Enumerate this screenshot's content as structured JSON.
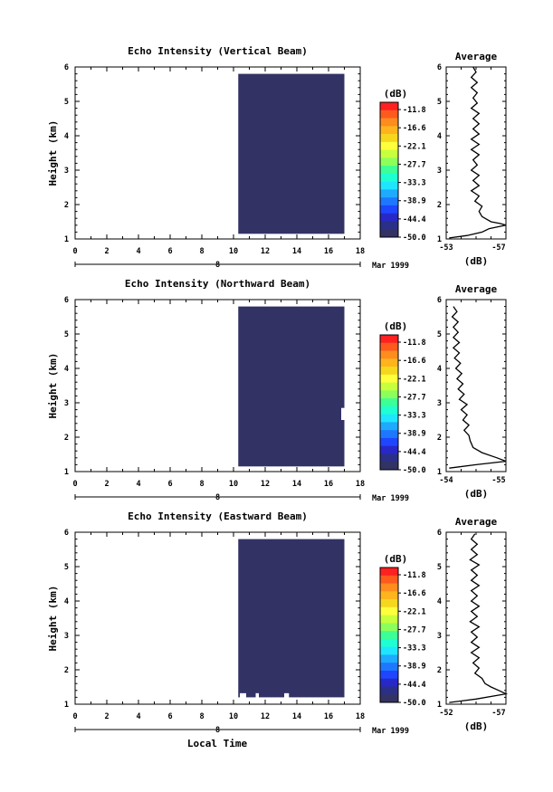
{
  "colorbar": {
    "unit": "(dB)",
    "labels": [
      "-11.8",
      "-16.6",
      "-22.1",
      "-27.7",
      "-33.3",
      "-38.9",
      "-44.4",
      "-50.0"
    ],
    "colors": [
      "#ff2020",
      "#ff5a1e",
      "#ff8c1e",
      "#ffb41e",
      "#f5d81e",
      "#ffff3c",
      "#c8ff3c",
      "#8cff5a",
      "#3cff96",
      "#1effd2",
      "#1ee6ff",
      "#1eaaff",
      "#1e78ff",
      "#1e46ff",
      "#2828c8",
      "#2a2f88",
      "#323264"
    ]
  },
  "x_axis": {
    "ticks": [
      "0",
      "2",
      "4",
      "6",
      "8",
      "10",
      "12",
      "14",
      "16",
      "18"
    ],
    "date_marker": "8",
    "date_label": "Mar 1999",
    "label": "Local Time"
  },
  "chart_data": [
    {
      "type": "heatmap",
      "title": "Echo Intensity (Vertical Beam)",
      "ylabel": "Height (km)",
      "xlim": [
        0,
        18
      ],
      "ylim": [
        1,
        6
      ],
      "yticks": [
        "1",
        "2",
        "3",
        "4",
        "5",
        "6"
      ],
      "fill_color": "#323264",
      "fill_value_db": -50.0,
      "data_region": {
        "x": [
          10.3,
          17.0
        ],
        "y": [
          1.15,
          5.8
        ]
      }
    },
    {
      "type": "line",
      "title": "Average",
      "xlabel": "(dB)",
      "xtick_labels": [
        "-53",
        "-57"
      ],
      "ylim": [
        1,
        6
      ],
      "yticks": [
        "1",
        "2",
        "3",
        "4",
        "5",
        "6"
      ],
      "profile_fraction": [
        [
          0.05,
          1.03
        ],
        [
          0.35,
          1.1
        ],
        [
          0.6,
          1.2
        ],
        [
          0.72,
          1.3
        ],
        [
          1.0,
          1.4
        ],
        [
          0.9,
          1.45
        ],
        [
          0.75,
          1.5
        ],
        [
          0.6,
          1.65
        ],
        [
          0.55,
          1.8
        ],
        [
          0.6,
          1.95
        ],
        [
          0.48,
          2.1
        ],
        [
          0.55,
          2.25
        ],
        [
          0.42,
          2.4
        ],
        [
          0.55,
          2.55
        ],
        [
          0.45,
          2.7
        ],
        [
          0.55,
          2.85
        ],
        [
          0.42,
          3.0
        ],
        [
          0.52,
          3.15
        ],
        [
          0.45,
          3.3
        ],
        [
          0.55,
          3.45
        ],
        [
          0.42,
          3.6
        ],
        [
          0.55,
          3.75
        ],
        [
          0.42,
          3.9
        ],
        [
          0.55,
          4.05
        ],
        [
          0.45,
          4.2
        ],
        [
          0.55,
          4.35
        ],
        [
          0.45,
          4.5
        ],
        [
          0.55,
          4.65
        ],
        [
          0.42,
          4.8
        ],
        [
          0.52,
          4.95
        ],
        [
          0.45,
          5.1
        ],
        [
          0.52,
          5.25
        ],
        [
          0.42,
          5.4
        ],
        [
          0.52,
          5.55
        ],
        [
          0.42,
          5.7
        ],
        [
          0.5,
          5.85
        ],
        [
          0.45,
          6.0
        ]
      ]
    },
    {
      "type": "heatmap",
      "title": "Echo Intensity (Northward Beam)",
      "ylabel": "Height (km)",
      "xlim": [
        0,
        18
      ],
      "ylim": [
        1,
        6
      ],
      "yticks": [
        "1",
        "2",
        "3",
        "4",
        "5",
        "6"
      ],
      "fill_color": "#323264",
      "fill_value_db": -50.0,
      "data_region": {
        "x": [
          10.3,
          17.0
        ],
        "y": [
          1.15,
          5.8
        ]
      },
      "gap": {
        "x": [
          16.8,
          17.0
        ],
        "y": [
          2.5,
          2.85
        ]
      }
    },
    {
      "type": "line",
      "title": "Average",
      "xlabel": "(dB)",
      "xtick_labels": [
        "-54",
        "-55"
      ],
      "ylim": [
        1,
        6
      ],
      "yticks": [
        "1",
        "2",
        "3",
        "4",
        "5",
        "6"
      ],
      "profile_fraction": [
        [
          0.05,
          1.1
        ],
        [
          0.5,
          1.2
        ],
        [
          1.0,
          1.3
        ],
        [
          0.85,
          1.4
        ],
        [
          0.6,
          1.55
        ],
        [
          0.45,
          1.7
        ],
        [
          0.4,
          1.9
        ],
        [
          0.38,
          2.05
        ],
        [
          0.3,
          2.2
        ],
        [
          0.38,
          2.35
        ],
        [
          0.28,
          2.5
        ],
        [
          0.35,
          2.65
        ],
        [
          0.25,
          2.8
        ],
        [
          0.35,
          2.95
        ],
        [
          0.22,
          3.1
        ],
        [
          0.3,
          3.25
        ],
        [
          0.2,
          3.4
        ],
        [
          0.28,
          3.55
        ],
        [
          0.18,
          3.7
        ],
        [
          0.26,
          3.85
        ],
        [
          0.16,
          4.0
        ],
        [
          0.24,
          4.15
        ],
        [
          0.14,
          4.3
        ],
        [
          0.22,
          4.45
        ],
        [
          0.12,
          4.6
        ],
        [
          0.22,
          4.75
        ],
        [
          0.12,
          4.9
        ],
        [
          0.2,
          5.05
        ],
        [
          0.12,
          5.2
        ],
        [
          0.2,
          5.35
        ],
        [
          0.1,
          5.5
        ],
        [
          0.18,
          5.65
        ],
        [
          0.12,
          5.8
        ]
      ]
    },
    {
      "type": "heatmap",
      "title": "Echo Intensity (Eastward Beam)",
      "ylabel": "Height (km)",
      "xlim": [
        0,
        18
      ],
      "ylim": [
        1,
        6
      ],
      "yticks": [
        "1",
        "2",
        "3",
        "4",
        "5",
        "6"
      ],
      "fill_color": "#323264",
      "fill_value_db": -50.0,
      "data_region": {
        "x": [
          10.3,
          17.0
        ],
        "y": [
          1.2,
          5.8
        ]
      },
      "bottom_notches": [
        [
          10.4,
          10.8
        ],
        [
          11.4,
          11.6
        ],
        [
          13.2,
          13.5
        ]
      ]
    },
    {
      "type": "line",
      "title": "Average",
      "xlabel": "(dB)",
      "xtick_labels": [
        "-52",
        "-57"
      ],
      "ylim": [
        1,
        6
      ],
      "yticks": [
        "1",
        "2",
        "3",
        "4",
        "5",
        "6"
      ],
      "profile_fraction": [
        [
          0.05,
          1.05
        ],
        [
          0.5,
          1.15
        ],
        [
          1.0,
          1.3
        ],
        [
          0.88,
          1.4
        ],
        [
          0.75,
          1.5
        ],
        [
          0.65,
          1.6
        ],
        [
          0.6,
          1.75
        ],
        [
          0.48,
          1.9
        ],
        [
          0.55,
          2.05
        ],
        [
          0.45,
          2.2
        ],
        [
          0.55,
          2.35
        ],
        [
          0.42,
          2.5
        ],
        [
          0.55,
          2.65
        ],
        [
          0.42,
          2.8
        ],
        [
          0.52,
          2.95
        ],
        [
          0.42,
          3.1
        ],
        [
          0.55,
          3.25
        ],
        [
          0.4,
          3.4
        ],
        [
          0.52,
          3.55
        ],
        [
          0.42,
          3.7
        ],
        [
          0.55,
          3.85
        ],
        [
          0.42,
          4.0
        ],
        [
          0.52,
          4.15
        ],
        [
          0.42,
          4.3
        ],
        [
          0.55,
          4.45
        ],
        [
          0.42,
          4.6
        ],
        [
          0.52,
          4.75
        ],
        [
          0.42,
          4.9
        ],
        [
          0.55,
          5.05
        ],
        [
          0.4,
          5.2
        ],
        [
          0.52,
          5.35
        ],
        [
          0.42,
          5.5
        ],
        [
          0.52,
          5.65
        ],
        [
          0.42,
          5.8
        ],
        [
          0.48,
          5.95
        ]
      ]
    }
  ]
}
